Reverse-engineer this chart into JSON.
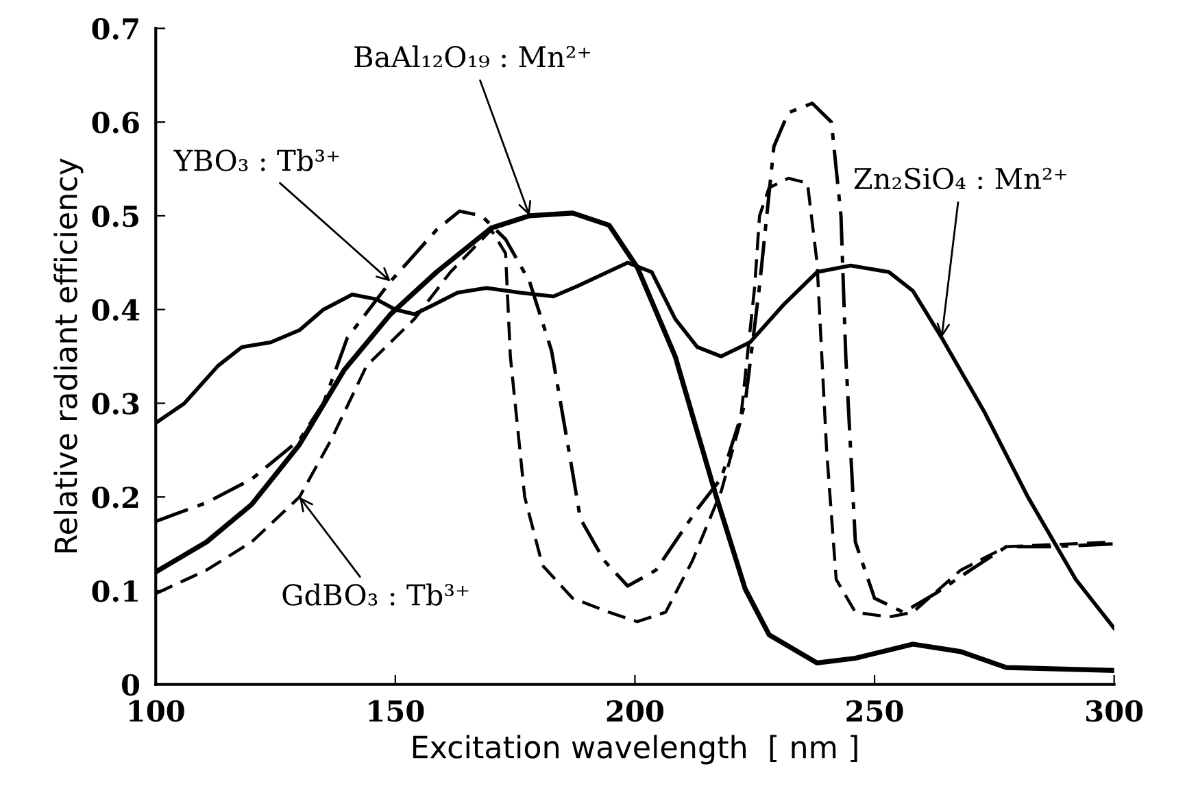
{
  "chart_data": {
    "type": "line",
    "xlabel": "Excitation wavelength  [ nm ]",
    "ylabel": "Relative radiant efficiency",
    "xlim": [
      100,
      300
    ],
    "xticks": [
      100,
      150,
      200,
      250,
      300
    ],
    "ylim": [
      0,
      0.7
    ],
    "yticks": [
      0,
      0.1,
      0.2,
      0.3,
      0.4,
      0.5,
      0.6,
      0.7
    ],
    "grid": false,
    "legend": false,
    "marker": "none",
    "series": [
      {
        "color": "#000000",
        "line_style": "solid",
        "x": [
          100,
          106,
          113,
          118,
          124,
          130,
          135,
          141,
          146,
          150,
          154,
          158,
          163,
          169,
          176,
          183,
          188,
          198.5,
          203.5,
          208.4,
          213,
          218,
          224,
          231,
          238,
          245,
          253,
          258,
          264,
          273,
          282,
          292,
          300
        ],
        "values": [
          0.279,
          0.3,
          0.34,
          0.36,
          0.365,
          0.378,
          0.4,
          0.416,
          0.411,
          0.4,
          0.395,
          0.405,
          0.418,
          0.423,
          0.418,
          0.414,
          0.425,
          0.45,
          0.44,
          0.39,
          0.36,
          0.35,
          0.365,
          0.405,
          0.44,
          0.447,
          0.44,
          0.42,
          0.37,
          0.29,
          0.2,
          0.112,
          0.06
        ]
      },
      {
        "color": "#000000",
        "line_style": "solid",
        "x": [
          100,
          110.6,
          120,
          130,
          139.4,
          149,
          158.6,
          170,
          178,
          187,
          194.6,
          200.5,
          208.4,
          217,
          223,
          228,
          238,
          246,
          258,
          268,
          277.5,
          300
        ],
        "values": [
          0.12,
          0.152,
          0.192,
          0.256,
          0.336,
          0.395,
          0.44,
          0.487,
          0.5,
          0.503,
          0.49,
          0.445,
          0.35,
          0.2,
          0.102,
          0.053,
          0.023,
          0.028,
          0.043,
          0.035,
          0.018,
          0.015
        ]
      },
      {
        "color": "#000000",
        "line_style": "dashdot",
        "x": [
          100,
          110.6,
          120,
          130,
          135,
          140,
          149,
          158.6,
          163.4,
          168,
          173,
          178,
          182.6,
          186.5,
          188.6,
          193.6,
          198.5,
          204.4,
          213,
          218,
          223,
          226,
          229,
          232,
          237,
          241,
          243,
          244,
          246,
          250,
          256,
          262.7,
          270,
          277.5,
          287,
          300
        ],
        "values": [
          0.174,
          0.194,
          0.219,
          0.261,
          0.3,
          0.37,
          0.43,
          0.485,
          0.505,
          0.5,
          0.475,
          0.43,
          0.356,
          0.241,
          0.177,
          0.132,
          0.105,
          0.122,
          0.187,
          0.22,
          0.3,
          0.425,
          0.574,
          0.61,
          0.62,
          0.6,
          0.5,
          0.35,
          0.152,
          0.092,
          0.077,
          0.097,
          0.122,
          0.147,
          0.147,
          0.15
        ]
      },
      {
        "color": "#000000",
        "line_style": "dashed",
        "x": [
          100,
          110.6,
          120,
          130,
          136.6,
          144,
          154,
          161.5,
          170,
          173,
          174,
          177,
          180.7,
          187,
          194.6,
          200.5,
          206.4,
          212,
          218,
          222,
          225,
          226,
          228,
          232,
          236,
          238,
          240,
          242,
          246,
          253,
          258,
          268,
          277.5,
          300
        ],
        "values": [
          0.097,
          0.122,
          0.152,
          0.2,
          0.261,
          0.34,
          0.39,
          0.44,
          0.485,
          0.46,
          0.35,
          0.2,
          0.127,
          0.092,
          0.077,
          0.067,
          0.077,
          0.132,
          0.206,
          0.28,
          0.425,
          0.5,
          0.53,
          0.54,
          0.535,
          0.45,
          0.25,
          0.112,
          0.077,
          0.072,
          0.077,
          0.122,
          0.147,
          0.152
        ]
      }
    ],
    "annotations": [
      {
        "text": "BaAl₁₂O₁₉ : Mn²⁺",
        "x": 178,
        "y": 0.5
      },
      {
        "text": "YBO₃ : Tb³⁺",
        "x": 149,
        "y": 0.43
      },
      {
        "text": "GdBO₃ : Tb³⁺",
        "x": 130,
        "y": 0.2
      },
      {
        "text": "Zn₂SiO₄ : Mn²⁺",
        "x": 264,
        "y": 0.37
      }
    ]
  }
}
